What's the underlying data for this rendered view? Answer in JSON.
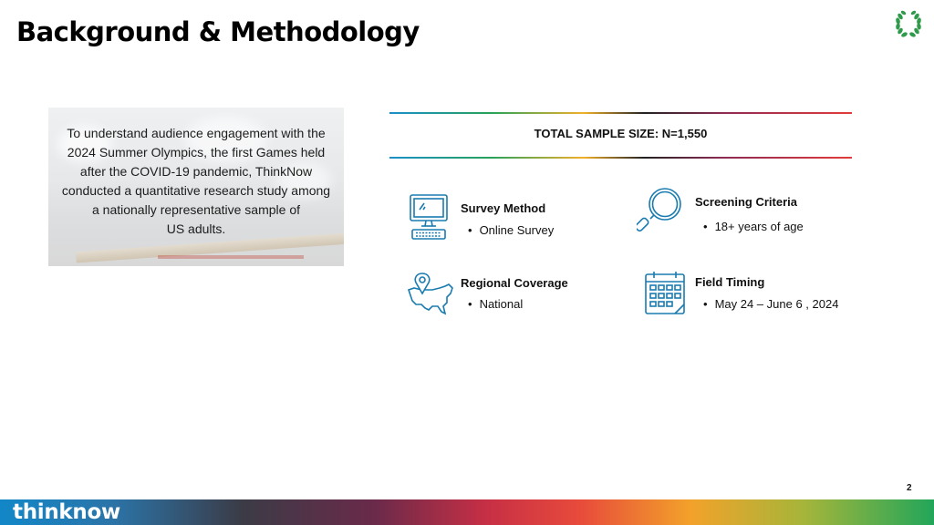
{
  "title": "Background & Methodology",
  "intro": "To understand audience engagement with the 2024 Summer Olympics, the first Games held after the COVID-19 pandemic, ThinkNow conducted a quantitative research study among a nationally representative sample of\nUS adults.",
  "sample_size": "TOTAL SAMPLE SIZE: N=1,550",
  "items": [
    {
      "title": "Survey Method",
      "bullet": "Online Survey",
      "icon": "computer-icon"
    },
    {
      "title": "Screening Criteria",
      "bullet": "18+ years of age",
      "icon": "magnifier-icon"
    },
    {
      "title": "Regional Coverage",
      "bullet": "National",
      "icon": "us-map-pin-icon"
    },
    {
      "title": "Field Timing",
      "bullet": "May 24 – June 6 , 2024",
      "icon": "calendar-icon"
    }
  ],
  "bullet_char": "•",
  "page_number": "2",
  "footer_logo": "thinknow",
  "colors": {
    "icon": "#1a7bb0",
    "title": "#000000"
  }
}
